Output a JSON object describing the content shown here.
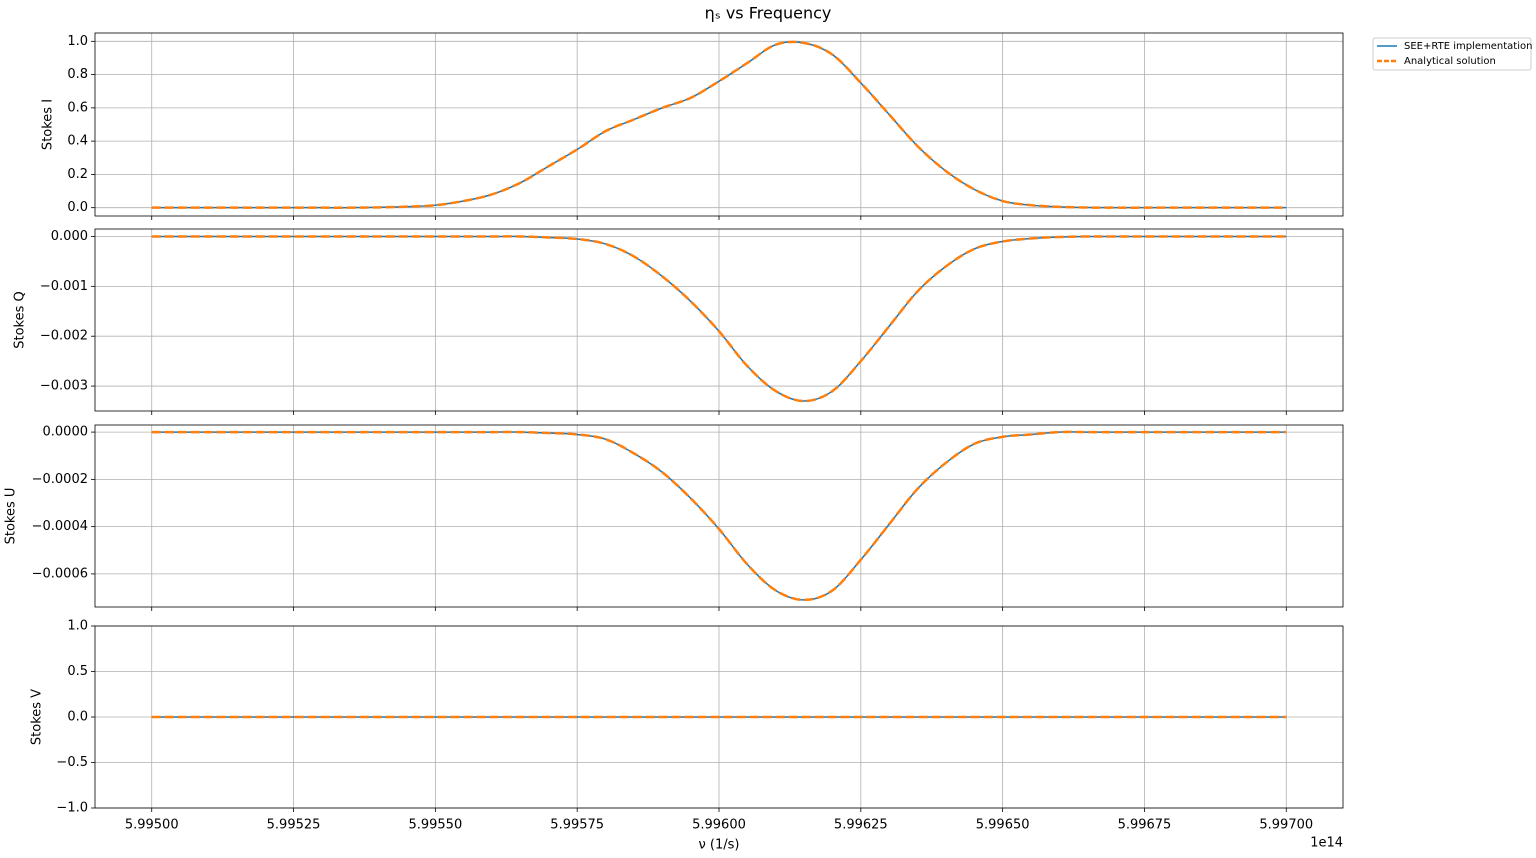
{
  "chart_data": [
    {
      "type": "line",
      "title": "ηₛ vs Frequency",
      "ylabel": "Stokes I",
      "grid": true,
      "legend": "outside upper right",
      "x": [
        599500000000000.0,
        599505000000000.0,
        599510000000000.0,
        599515000000000.0,
        599520000000000.0,
        599525000000000.0,
        599530000000000.0,
        599535000000000.0,
        599540000000000.0,
        599545000000000.0,
        599550000000000.0,
        599555000000000.0,
        599560000000000.0,
        599565000000000.0,
        599570000000000.0,
        599575000000000.0,
        599580000000000.0,
        599585000000000.0,
        599590000000000.0,
        599595000000000.0,
        599600000000000.0,
        599605000000000.0,
        599610000000000.0,
        599615000000000.0,
        599620000000000.0,
        599625000000000.0,
        599630000000000.0,
        599635000000000.0,
        599640000000000.0,
        599645000000000.0,
        599650000000000.0,
        599655000000000.0,
        599660000000000.0,
        599665000000000.0,
        599670000000000.0,
        599675000000000.0,
        599680000000000.0,
        599685000000000.0,
        599690000000000.0,
        599695000000000.0,
        599700000000000.0
      ],
      "series": [
        {
          "name": "SEE+RTE implementation",
          "color": "#1f77b4",
          "linestyle": "-",
          "values": [
            0,
            0,
            0,
            0,
            0,
            0,
            0,
            0,
            0.002,
            0.006,
            0.015,
            0.04,
            0.08,
            0.15,
            0.25,
            0.35,
            0.46,
            0.53,
            0.6,
            0.66,
            0.76,
            0.87,
            0.98,
            0.99,
            0.92,
            0.75,
            0.56,
            0.37,
            0.22,
            0.11,
            0.04,
            0.015,
            0.005,
            0.001,
            0,
            0,
            0,
            0,
            0,
            0,
            0
          ]
        },
        {
          "name": "Analytical solution",
          "color": "#ff7f0e",
          "linestyle": "--",
          "values": [
            0,
            0,
            0,
            0,
            0,
            0,
            0,
            0,
            0.002,
            0.006,
            0.015,
            0.04,
            0.08,
            0.15,
            0.25,
            0.35,
            0.46,
            0.53,
            0.6,
            0.66,
            0.76,
            0.87,
            0.98,
            0.99,
            0.92,
            0.75,
            0.56,
            0.37,
            0.22,
            0.11,
            0.04,
            0.015,
            0.005,
            0.001,
            0,
            0,
            0,
            0,
            0,
            0,
            0
          ]
        }
      ],
      "xlim": [
        599490000000000.0,
        599710000000000.0
      ],
      "xticks": [
        599500000000000.0,
        599525000000000.0,
        599550000000000.0,
        599575000000000.0,
        599600000000000.0,
        599625000000000.0,
        599650000000000.0,
        599675000000000.0,
        599700000000000.0
      ],
      "ylim": [
        -0.05,
        1.05
      ],
      "yticks": [
        {
          "value": 0,
          "label": "0.0"
        },
        0.2,
        0.4,
        0.6,
        0.8,
        {
          "value": 1,
          "label": "1.0"
        }
      ]
    },
    {
      "type": "line",
      "ylabel": "Stokes Q",
      "grid": true,
      "x": [
        599500000000000.0,
        599505000000000.0,
        599510000000000.0,
        599515000000000.0,
        599520000000000.0,
        599525000000000.0,
        599530000000000.0,
        599535000000000.0,
        599540000000000.0,
        599545000000000.0,
        599550000000000.0,
        599555000000000.0,
        599560000000000.0,
        599565000000000.0,
        599570000000000.0,
        599575000000000.0,
        599580000000000.0,
        599585000000000.0,
        599590000000000.0,
        599595000000000.0,
        599600000000000.0,
        599605000000000.0,
        599610000000000.0,
        599615000000000.0,
        599620000000000.0,
        599625000000000.0,
        599630000000000.0,
        599635000000000.0,
        599640000000000.0,
        599645000000000.0,
        599650000000000.0,
        599655000000000.0,
        599660000000000.0,
        599665000000000.0,
        599670000000000.0,
        599675000000000.0,
        599680000000000.0,
        599685000000000.0,
        599690000000000.0,
        599695000000000.0,
        599700000000000.0
      ],
      "series": [
        {
          "name": "SEE+RTE implementation",
          "color": "#1f77b4",
          "linestyle": "-",
          "values": [
            0,
            0,
            0,
            0,
            0,
            0,
            0,
            0,
            0,
            0,
            0,
            0,
            0,
            0,
            -2e-05,
            -5e-05,
            -0.00015,
            -0.0004,
            -0.0008,
            -0.0013,
            -0.0019,
            -0.0026,
            -0.0031,
            -0.0033,
            -0.0031,
            -0.0025,
            -0.0018,
            -0.0011,
            -0.0006,
            -0.00025,
            -0.0001,
            -4e-05,
            -1e-05,
            0,
            0,
            0,
            0,
            0,
            0,
            0,
            0
          ]
        },
        {
          "name": "Analytical solution",
          "color": "#ff7f0e",
          "linestyle": "--",
          "values": [
            0,
            0,
            0,
            0,
            0,
            0,
            0,
            0,
            0,
            0,
            0,
            0,
            0,
            0,
            -2e-05,
            -5e-05,
            -0.00015,
            -0.0004,
            -0.0008,
            -0.0013,
            -0.0019,
            -0.0026,
            -0.0031,
            -0.0033,
            -0.0031,
            -0.0025,
            -0.0018,
            -0.0011,
            -0.0006,
            -0.00025,
            -0.0001,
            -4e-05,
            -1e-05,
            0,
            0,
            0,
            0,
            0,
            0,
            0,
            0
          ]
        }
      ],
      "xlim": [
        599490000000000.0,
        599710000000000.0
      ],
      "xticks": [
        599500000000000.0,
        599525000000000.0,
        599550000000000.0,
        599575000000000.0,
        599600000000000.0,
        599625000000000.0,
        599650000000000.0,
        599675000000000.0,
        599700000000000.0
      ],
      "ylim": [
        -0.0035,
        0.00015
      ],
      "yticks": [
        {
          "value": 0,
          "label": "0.000"
        },
        {
          "value": -0.001,
          "label": "−0.001"
        },
        {
          "value": -0.002,
          "label": "−0.002"
        },
        {
          "value": -0.003,
          "label": "−0.003"
        }
      ]
    },
    {
      "type": "line",
      "ylabel": "Stokes U",
      "grid": true,
      "x": [
        599500000000000.0,
        599505000000000.0,
        599510000000000.0,
        599515000000000.0,
        599520000000000.0,
        599525000000000.0,
        599530000000000.0,
        599535000000000.0,
        599540000000000.0,
        599545000000000.0,
        599550000000000.0,
        599555000000000.0,
        599560000000000.0,
        599565000000000.0,
        599570000000000.0,
        599575000000000.0,
        599580000000000.0,
        599585000000000.0,
        599590000000000.0,
        599595000000000.0,
        599600000000000.0,
        599605000000000.0,
        599610000000000.0,
        599615000000000.0,
        599620000000000.0,
        599625000000000.0,
        599630000000000.0,
        599635000000000.0,
        599640000000000.0,
        599645000000000.0,
        599650000000000.0,
        599655000000000.0,
        599660000000000.0,
        599665000000000.0,
        599670000000000.0,
        599675000000000.0,
        599680000000000.0,
        599685000000000.0,
        599690000000000.0,
        599695000000000.0,
        599700000000000.0
      ],
      "series": [
        {
          "name": "SEE+RTE implementation",
          "color": "#1f77b4",
          "linestyle": "-",
          "values": [
            0,
            0,
            0,
            0,
            0,
            0,
            0,
            0,
            0,
            0,
            0,
            0,
            0,
            0,
            -4e-06,
            -1e-05,
            -3e-05,
            -9e-05,
            -0.00017,
            -0.00028,
            -0.00041,
            -0.00056,
            -0.00067,
            -0.00071,
            -0.00067,
            -0.00054,
            -0.00039,
            -0.00024,
            -0.00013,
            -5e-05,
            -2e-05,
            -1e-05,
            0,
            0,
            0,
            0,
            0,
            0,
            0,
            0,
            0
          ]
        },
        {
          "name": "Analytical solution",
          "color": "#ff7f0e",
          "linestyle": "--",
          "values": [
            0,
            0,
            0,
            0,
            0,
            0,
            0,
            0,
            0,
            0,
            0,
            0,
            0,
            0,
            -4e-06,
            -1e-05,
            -3e-05,
            -9e-05,
            -0.00017,
            -0.00028,
            -0.00041,
            -0.00056,
            -0.00067,
            -0.00071,
            -0.00067,
            -0.00054,
            -0.00039,
            -0.00024,
            -0.00013,
            -5e-05,
            -2e-05,
            -1e-05,
            0,
            0,
            0,
            0,
            0,
            0,
            0,
            0,
            0
          ]
        }
      ],
      "xlim": [
        599490000000000.0,
        599710000000000.0
      ],
      "xticks": [
        599500000000000.0,
        599525000000000.0,
        599550000000000.0,
        599575000000000.0,
        599600000000000.0,
        599625000000000.0,
        599650000000000.0,
        599675000000000.0,
        599700000000000.0
      ],
      "ylim": [
        -0.00074,
        3e-05
      ],
      "yticks": [
        {
          "value": 0,
          "label": "0.0000"
        },
        {
          "value": -0.0002,
          "label": "−0.0002"
        },
        {
          "value": -0.0004,
          "label": "−0.0004"
        },
        {
          "value": -0.0006,
          "label": "−0.0006"
        }
      ]
    },
    {
      "type": "line",
      "ylabel": "Stokes V",
      "xlabel": "ν (1/s)",
      "x_offset_text": "1e14",
      "grid": true,
      "x": [
        599500000000000.0,
        599505000000000.0,
        599510000000000.0,
        599515000000000.0,
        599520000000000.0,
        599525000000000.0,
        599530000000000.0,
        599535000000000.0,
        599540000000000.0,
        599545000000000.0,
        599550000000000.0,
        599555000000000.0,
        599560000000000.0,
        599565000000000.0,
        599570000000000.0,
        599575000000000.0,
        599580000000000.0,
        599585000000000.0,
        599590000000000.0,
        599595000000000.0,
        599600000000000.0,
        599605000000000.0,
        599610000000000.0,
        599615000000000.0,
        599620000000000.0,
        599625000000000.0,
        599630000000000.0,
        599635000000000.0,
        599640000000000.0,
        599645000000000.0,
        599650000000000.0,
        599655000000000.0,
        599660000000000.0,
        599665000000000.0,
        599670000000000.0,
        599675000000000.0,
        599680000000000.0,
        599685000000000.0,
        599690000000000.0,
        599695000000000.0,
        599700000000000.0
      ],
      "series": [
        {
          "name": "SEE+RTE implementation",
          "color": "#1f77b4",
          "linestyle": "-",
          "values": [
            0,
            0,
            0,
            0,
            0,
            0,
            0,
            0,
            0,
            0,
            0,
            0,
            0,
            0,
            0,
            0,
            0,
            0,
            0,
            0,
            0,
            0,
            0,
            0,
            0,
            0,
            0,
            0,
            0,
            0,
            0,
            0,
            0,
            0,
            0,
            0,
            0,
            0,
            0,
            0,
            0
          ]
        },
        {
          "name": "Analytical solution",
          "color": "#ff7f0e",
          "linestyle": "--",
          "values": [
            0,
            0,
            0,
            0,
            0,
            0,
            0,
            0,
            0,
            0,
            0,
            0,
            0,
            0,
            0,
            0,
            0,
            0,
            0,
            0,
            0,
            0,
            0,
            0,
            0,
            0,
            0,
            0,
            0,
            0,
            0,
            0,
            0,
            0,
            0,
            0,
            0,
            0,
            0,
            0,
            0
          ]
        }
      ],
      "xlim": [
        599490000000000.0,
        599710000000000.0
      ],
      "xticks": [
        {
          "value": 599500000000000.0,
          "label": "5.99500"
        },
        {
          "value": 599525000000000.0,
          "label": "5.99525"
        },
        {
          "value": 599550000000000.0,
          "label": "5.99550"
        },
        {
          "value": 599575000000000.0,
          "label": "5.99575"
        },
        {
          "value": 599600000000000.0,
          "label": "5.99600"
        },
        {
          "value": 599625000000000.0,
          "label": "5.99625"
        },
        {
          "value": 599650000000000.0,
          "label": "5.99650"
        },
        {
          "value": 599675000000000.0,
          "label": "5.99675"
        },
        {
          "value": 599700000000000.0,
          "label": "5.99700"
        }
      ],
      "ylim": [
        -1,
        1
      ],
      "yticks": [
        {
          "value": -1,
          "label": "−1.0"
        },
        {
          "value": -0.5,
          "label": "−0.5"
        },
        {
          "value": 0,
          "label": "0.0"
        },
        0.5,
        {
          "value": 1,
          "label": "1.0"
        }
      ]
    }
  ]
}
